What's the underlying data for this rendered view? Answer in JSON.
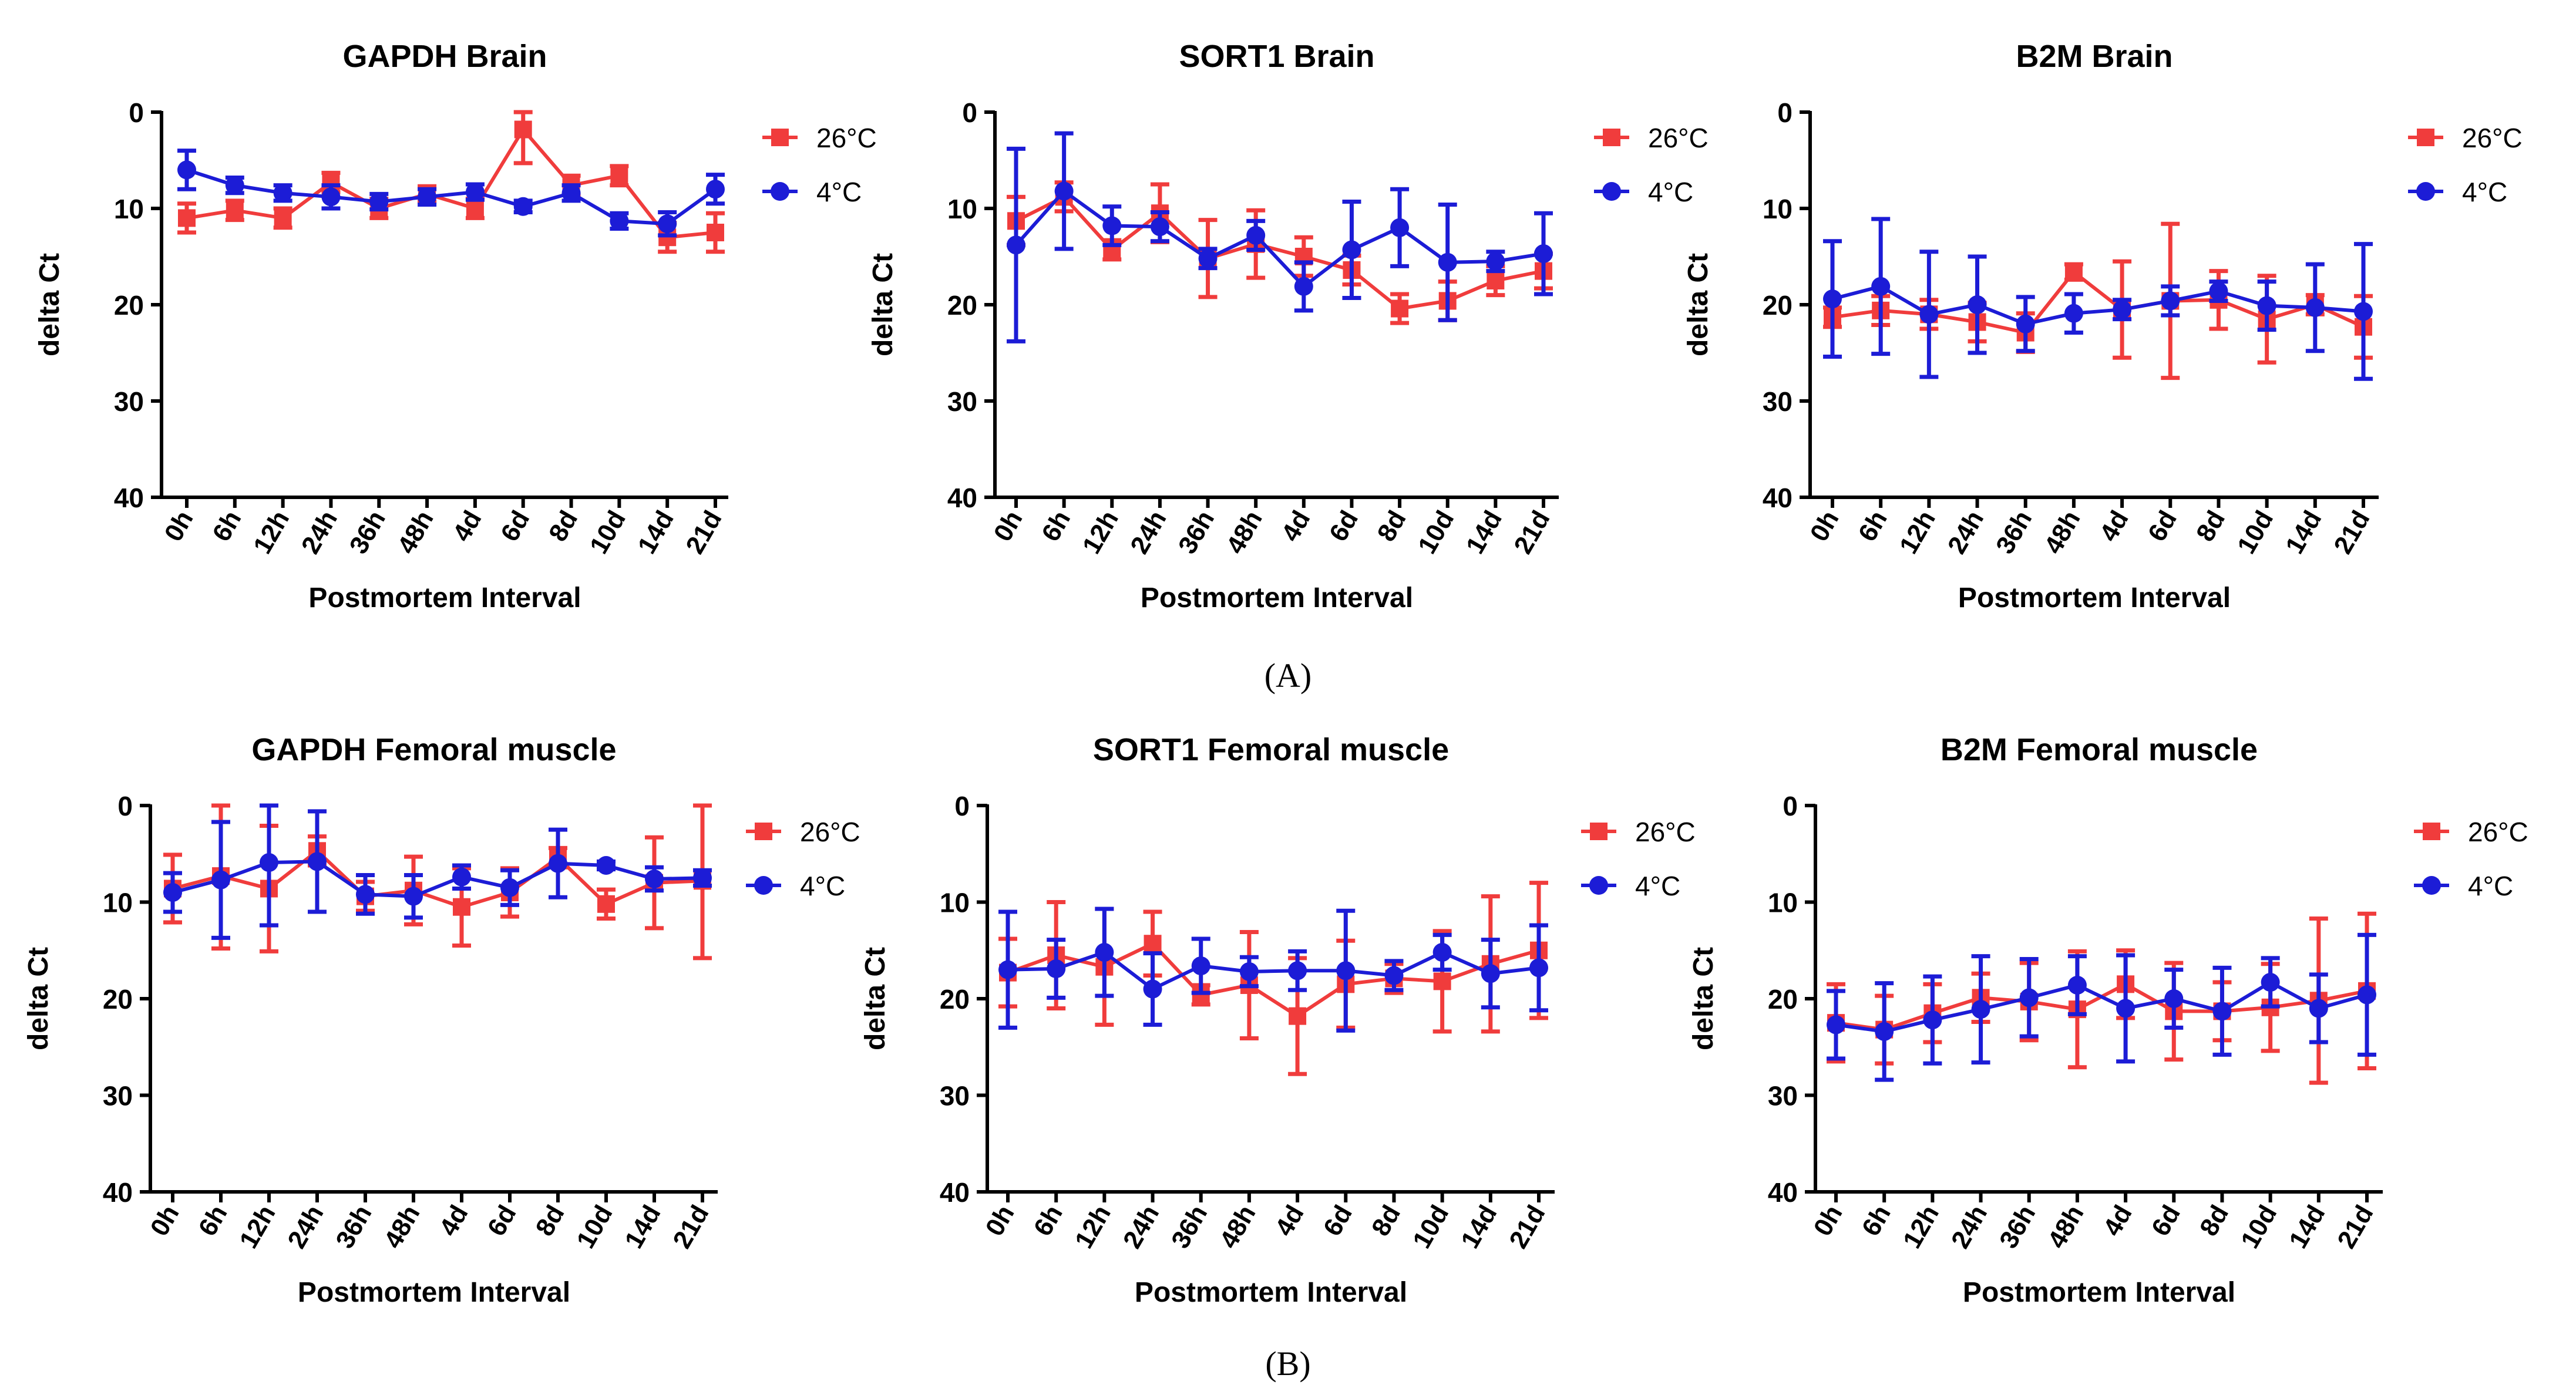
{
  "figure": {
    "panel_labels": [
      "(A)",
      "(B)"
    ]
  },
  "colors": {
    "26C": "#f03c3c",
    "4C": "#1c1cd6",
    "axis": "#000000"
  },
  "chart_data": [
    {
      "type": "line",
      "title": "GAPDH Brain",
      "xlabel": "Postmortem Interval",
      "ylabel": "delta Ct",
      "ylim": [
        0,
        40
      ],
      "yticks": [
        0,
        10,
        20,
        30,
        40
      ],
      "y_inverted": true,
      "legend_position": "right",
      "categories": [
        "0h",
        "6h",
        "12h",
        "24h",
        "36h",
        "48h",
        "4d",
        "6d",
        "8d",
        "10d",
        "14d",
        "21d"
      ],
      "series": [
        {
          "name": "26°C",
          "marker": "square",
          "color": "#f03c3c",
          "values": [
            11,
            10.2,
            11,
            7.3,
            10,
            8.5,
            10,
            1.8,
            7.6,
            6.6,
            13,
            12.5
          ],
          "err": [
            1.5,
            1,
            1,
            1,
            1,
            0.8,
            1,
            3.5,
            1,
            1,
            1.5,
            2
          ]
        },
        {
          "name": "4°C",
          "marker": "circle",
          "color": "#1c1cd6",
          "values": [
            6,
            7.6,
            8.4,
            8.8,
            9.3,
            8.8,
            8.3,
            9.8,
            8.4,
            11.3,
            11.6,
            8
          ],
          "err": [
            2,
            0.8,
            0.8,
            1.2,
            0.8,
            0.8,
            0.8,
            0.6,
            0.8,
            0.8,
            1.2,
            1.5
          ]
        }
      ]
    },
    {
      "type": "line",
      "title": "SORT1 Brain",
      "xlabel": "Postmortem Interval",
      "ylabel": "delta Ct",
      "ylim": [
        0,
        40
      ],
      "yticks": [
        0,
        10,
        20,
        30,
        40
      ],
      "y_inverted": true,
      "legend_position": "right",
      "categories": [
        "0h",
        "6h",
        "12h",
        "24h",
        "36h",
        "48h",
        "4d",
        "6d",
        "8d",
        "10d",
        "14d",
        "21d"
      ],
      "series": [
        {
          "name": "26°C",
          "marker": "square",
          "color": "#f03c3c",
          "values": [
            11.3,
            8.8,
            14.3,
            10.5,
            15.2,
            13.7,
            15,
            16.4,
            20.4,
            19.6,
            17.5,
            16.5
          ],
          "err": [
            2.5,
            1.5,
            1,
            3,
            4,
            3.5,
            2,
            1.5,
            1.5,
            2,
            1.5,
            1.8
          ]
        },
        {
          "name": "4°C",
          "marker": "circle",
          "color": "#1c1cd6",
          "values": [
            13.8,
            8.2,
            11.8,
            11.9,
            15.2,
            12.8,
            18.1,
            14.3,
            12,
            15.6,
            15.5,
            14.7
          ],
          "err": [
            10,
            6,
            2,
            1.5,
            1,
            1.5,
            2.5,
            5,
            4,
            6,
            1,
            4.2
          ]
        }
      ]
    },
    {
      "type": "line",
      "title": "B2M Brain",
      "xlabel": "Postmortem Interval",
      "ylabel": "delta Ct",
      "ylim": [
        0,
        40
      ],
      "yticks": [
        0,
        10,
        20,
        30,
        40
      ],
      "y_inverted": true,
      "legend_position": "right",
      "categories": [
        "0h",
        "6h",
        "12h",
        "24h",
        "36h",
        "48h",
        "4d",
        "6d",
        "8d",
        "10d",
        "14d",
        "21d"
      ],
      "series": [
        {
          "name": "26°C",
          "marker": "square",
          "color": "#f03c3c",
          "values": [
            21.3,
            20.6,
            21,
            21.8,
            22.9,
            16.6,
            20.5,
            19.6,
            19.5,
            21.5,
            20,
            22.3
          ],
          "err": [
            1,
            1.5,
            1.5,
            2,
            2,
            0.8,
            5,
            8,
            3,
            4.5,
            1,
            3.2
          ]
        },
        {
          "name": "4°C",
          "marker": "circle",
          "color": "#1c1cd6",
          "values": [
            19.4,
            18.1,
            21,
            20,
            22,
            20.9,
            20.5,
            19.6,
            18.6,
            20.1,
            20.3,
            20.7
          ],
          "err": [
            6,
            7,
            6.5,
            5,
            2.8,
            2,
            1,
            1.5,
            1,
            2.5,
            4.5,
            7
          ]
        }
      ]
    },
    {
      "type": "line",
      "title": "GAPDH Femoral muscle",
      "xlabel": "Postmortem Interval",
      "ylabel": "delta Ct",
      "ylim": [
        0,
        40
      ],
      "yticks": [
        0,
        10,
        20,
        30,
        40
      ],
      "y_inverted": true,
      "legend_position": "right",
      "categories": [
        "0h",
        "6h",
        "12h",
        "24h",
        "36h",
        "48h",
        "4d",
        "6d",
        "8d",
        "10d",
        "14d",
        "21d"
      ],
      "series": [
        {
          "name": "26°C",
          "marker": "square",
          "color": "#f03c3c",
          "values": [
            8.6,
            7.3,
            8.6,
            4.7,
            9.4,
            8.8,
            10.5,
            9,
            5.4,
            10.2,
            8,
            7.8
          ],
          "err": [
            3.5,
            7.5,
            6.5,
            1.5,
            1.5,
            3.5,
            4,
            2.5,
            1,
            1.5,
            4.7,
            8
          ]
        },
        {
          "name": "4°C",
          "marker": "circle",
          "color": "#1c1cd6",
          "values": [
            9,
            7.7,
            5.9,
            5.8,
            9.2,
            9.4,
            7.4,
            8.5,
            6,
            6.2,
            7.6,
            7.5
          ],
          "err": [
            2,
            6,
            6.5,
            5.2,
            2,
            2.2,
            1.2,
            1.8,
            3.5,
            0.4,
            1.2,
            0.8
          ]
        }
      ]
    },
    {
      "type": "line",
      "title": "SORT1 Femoral muscle",
      "xlabel": "Postmortem Interval",
      "ylabel": "delta Ct",
      "ylim": [
        0,
        40
      ],
      "yticks": [
        0,
        10,
        20,
        30,
        40
      ],
      "y_inverted": true,
      "legend_position": "right",
      "categories": [
        "0h",
        "6h",
        "12h",
        "24h",
        "36h",
        "48h",
        "4d",
        "6d",
        "8d",
        "10d",
        "14d",
        "21d"
      ],
      "series": [
        {
          "name": "26°C",
          "marker": "square",
          "color": "#f03c3c",
          "values": [
            17.3,
            15.5,
            16.7,
            14.3,
            19.6,
            18.6,
            21.8,
            18.5,
            17.9,
            18.2,
            16.4,
            15
          ],
          "err": [
            3.5,
            5.5,
            6,
            3.3,
            1,
            5.5,
            6,
            4.5,
            1.5,
            5.2,
            7,
            7
          ]
        },
        {
          "name": "4°C",
          "marker": "circle",
          "color": "#1c1cd6",
          "values": [
            17,
            16.9,
            15.2,
            19,
            16.6,
            17.2,
            17.1,
            17.1,
            17.6,
            15.2,
            17.4,
            16.8
          ],
          "err": [
            6,
            3,
            4.5,
            3.7,
            2.8,
            1.5,
            2,
            6.2,
            1.5,
            1.8,
            3.5,
            4.4
          ]
        }
      ]
    },
    {
      "type": "line",
      "title": "B2M Femoral muscle",
      "xlabel": "Postmortem Interval",
      "ylabel": "delta Ct",
      "ylim": [
        0,
        40
      ],
      "yticks": [
        0,
        10,
        20,
        30,
        40
      ],
      "y_inverted": true,
      "legend_position": "right",
      "categories": [
        "0h",
        "6h",
        "12h",
        "24h",
        "36h",
        "48h",
        "4d",
        "6d",
        "8d",
        "10d",
        "14d",
        "21d"
      ],
      "series": [
        {
          "name": "26°C",
          "marker": "square",
          "color": "#f03c3c",
          "values": [
            22.5,
            23.2,
            21.5,
            19.9,
            20.3,
            21.1,
            18.5,
            21.3,
            21.3,
            20.9,
            20.2,
            19.2
          ],
          "err": [
            4,
            3.5,
            3,
            2.5,
            4,
            6,
            3.5,
            5,
            3,
            4.5,
            8.5,
            8
          ]
        },
        {
          "name": "4°C",
          "marker": "circle",
          "color": "#1c1cd6",
          "values": [
            22.7,
            23.4,
            22.2,
            21.1,
            19.9,
            18.6,
            21,
            20,
            21.3,
            18.3,
            21,
            19.6
          ],
          "err": [
            3.5,
            5,
            4.5,
            5.5,
            4,
            3,
            5.5,
            3,
            4.5,
            2.5,
            3.5,
            6.2
          ]
        }
      ]
    }
  ]
}
